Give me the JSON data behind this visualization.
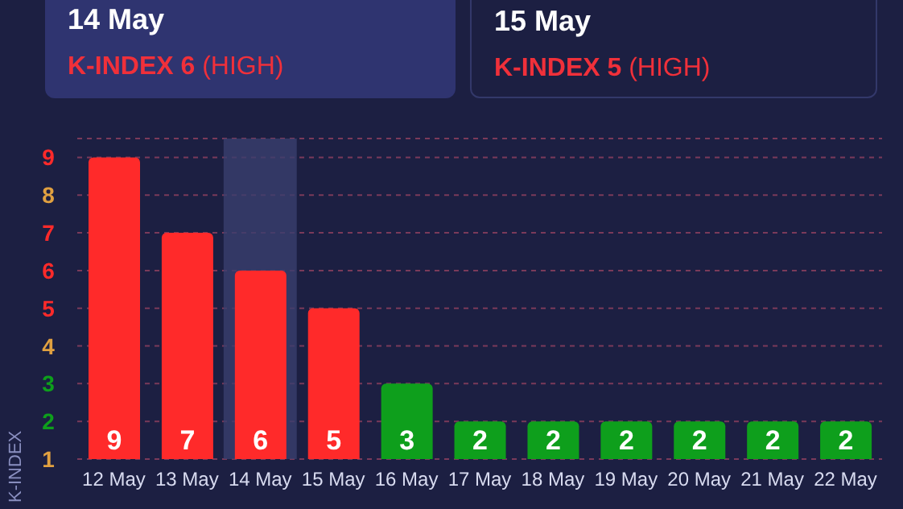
{
  "chart_data": {
    "type": "bar",
    "ylabel": "K-INDEX",
    "annotations": [
      "14 May",
      "K-INDEX 6 (HIGH)",
      "15 May",
      "K-INDEX 5 (HIGH)"
    ],
    "categories": [
      "12 May",
      "13 May",
      "14 May",
      "15 May",
      "16 May",
      "17 May",
      "18 May",
      "19 May",
      "20 May",
      "21 May",
      "22 May"
    ],
    "values": [
      9,
      7,
      6,
      5,
      3,
      2,
      2,
      2,
      2,
      2,
      2
    ],
    "colors": [
      "#ff2a2a",
      "#ff2a2a",
      "#ff2a2a",
      "#ff2a2a",
      "#0e9f1c",
      "#0e9f1c",
      "#0e9f1c",
      "#0e9f1c",
      "#0e9f1c",
      "#0e9f1c",
      "#0e9f1c"
    ],
    "data_labels": true,
    "ylim": [
      1,
      9.5
    ],
    "yticks": [
      1,
      2,
      3,
      4,
      5,
      6,
      7,
      8,
      9
    ],
    "grid": "y",
    "bands": [
      {
        "axis": "x",
        "from": "14 May",
        "to": "14 May",
        "color": "#3a3f6e"
      }
    ]
  }
}
